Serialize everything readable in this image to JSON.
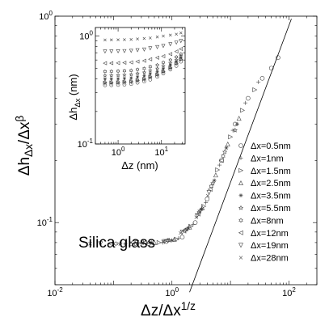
{
  "chart_data": {
    "type": "scatter",
    "xlabel": "Δz/Δx^{1/z}",
    "ylabel": "Δh_{Δx}/Δx^β",
    "xscale": "log",
    "yscale": "log",
    "xlim": [
      0.01,
      300
    ],
    "ylim": [
      0.05,
      1
    ],
    "xticks": [
      {
        "value": 0.01,
        "base": "10",
        "exp": "-2"
      },
      {
        "value": 1,
        "base": "10",
        "exp": "0"
      },
      {
        "value": 100,
        "base": "10",
        "exp": "2"
      }
    ],
    "yticks": [
      {
        "value": 0.1,
        "base": "10",
        "exp": "-1"
      },
      {
        "value": 1,
        "base": "10",
        "exp": "0"
      }
    ],
    "annotation": "Silica glass",
    "legend_position": "bottom-right",
    "series": [
      {
        "name": "Δx=0.5nm",
        "marker": "circle",
        "points": [
          [
            0.4,
            0.079
          ],
          [
            0.8,
            0.081
          ],
          [
            1.5,
            0.085
          ],
          [
            2.5,
            0.1
          ],
          [
            4,
            0.13
          ],
          [
            7,
            0.2
          ],
          [
            12,
            0.3
          ],
          [
            20,
            0.4
          ],
          [
            35,
            0.5
          ],
          [
            50,
            0.56
          ],
          [
            65,
            0.63
          ]
        ]
      },
      {
        "name": "Δx=1nm",
        "marker": "plus",
        "points": [
          [
            0.3,
            0.079
          ],
          [
            0.7,
            0.08
          ],
          [
            1.3,
            0.084
          ],
          [
            2.3,
            0.098
          ],
          [
            3.8,
            0.125
          ],
          [
            6.5,
            0.19
          ],
          [
            11,
            0.28
          ],
          [
            18,
            0.38
          ],
          [
            30,
            0.48
          ]
        ]
      },
      {
        "name": "Δx=1.5nm",
        "marker": "triangle-right",
        "points": [
          [
            0.25,
            0.079
          ],
          [
            0.6,
            0.08
          ],
          [
            1.2,
            0.083
          ],
          [
            2.1,
            0.096
          ],
          [
            3.5,
            0.12
          ],
          [
            6,
            0.18
          ],
          [
            10,
            0.26
          ],
          [
            16,
            0.35
          ],
          [
            26,
            0.44
          ]
        ]
      },
      {
        "name": "Δx=2.5nm",
        "marker": "triangle-up",
        "points": [
          [
            0.2,
            0.079
          ],
          [
            0.5,
            0.08
          ],
          [
            1.1,
            0.083
          ],
          [
            2,
            0.095
          ],
          [
            3.3,
            0.118
          ],
          [
            5.6,
            0.17
          ],
          [
            9,
            0.24
          ],
          [
            14,
            0.32
          ]
        ]
      },
      {
        "name": "Δx=3.5nm",
        "marker": "asterisk",
        "points": [
          [
            0.16,
            0.079
          ],
          [
            0.45,
            0.08
          ],
          [
            1,
            0.082
          ],
          [
            1.9,
            0.094
          ],
          [
            3.2,
            0.116
          ],
          [
            5.3,
            0.16
          ],
          [
            8.5,
            0.23
          ],
          [
            13,
            0.3
          ]
        ]
      },
      {
        "name": "Δx=5.5nm",
        "marker": "star",
        "points": [
          [
            0.13,
            0.079
          ],
          [
            0.4,
            0.08
          ],
          [
            0.9,
            0.082
          ],
          [
            1.8,
            0.093
          ],
          [
            3,
            0.114
          ],
          [
            5,
            0.155
          ],
          [
            8,
            0.22
          ],
          [
            12,
            0.28
          ]
        ]
      },
      {
        "name": "Δx=8nm",
        "marker": "hexagram",
        "points": [
          [
            0.11,
            0.079
          ],
          [
            0.35,
            0.08
          ],
          [
            0.85,
            0.082
          ],
          [
            1.7,
            0.092
          ],
          [
            2.9,
            0.112
          ],
          [
            4.7,
            0.15
          ],
          [
            7.5,
            0.21
          ]
        ]
      },
      {
        "name": "Δx=12nm",
        "marker": "triangle-left",
        "points": [
          [
            0.09,
            0.079
          ],
          [
            0.3,
            0.08
          ],
          [
            0.8,
            0.082
          ],
          [
            1.6,
            0.091
          ],
          [
            2.8,
            0.11
          ],
          [
            4.5,
            0.145
          ],
          [
            7,
            0.2
          ]
        ]
      },
      {
        "name": "Δx=19nm",
        "marker": "triangle-down",
        "points": [
          [
            0.06,
            0.079
          ],
          [
            0.25,
            0.08
          ],
          [
            0.75,
            0.081
          ],
          [
            1.5,
            0.09
          ],
          [
            2.7,
            0.108
          ],
          [
            4.3,
            0.14
          ]
        ]
      },
      {
        "name": "Δx=28nm",
        "marker": "cross",
        "points": [
          [
            0.04,
            0.079
          ],
          [
            0.2,
            0.08
          ],
          [
            0.7,
            0.081
          ],
          [
            1.4,
            0.089
          ],
          [
            2.6,
            0.106
          ],
          [
            4.1,
            0.135
          ]
        ]
      }
    ],
    "fit_line": {
      "x": [
        2,
        110
      ],
      "y": [
        0.046,
        0.97
      ]
    },
    "inset": {
      "type": "scatter",
      "xlabel": "Δz (nm)",
      "ylabel": "Δh_{Δx} (nm)",
      "xscale": "log",
      "yscale": "log",
      "xlim": [
        0.3,
        35
      ],
      "ylim": [
        0.1,
        1.2
      ],
      "xticks": [
        {
          "value": 1,
          "base": "10",
          "exp": "0"
        },
        {
          "value": 10,
          "base": "10",
          "exp": "1"
        }
      ],
      "yticks": [
        {
          "value": 0.1,
          "base": "10",
          "exp": "-1"
        },
        {
          "value": 1,
          "base": "10",
          "exp": "0"
        }
      ],
      "xsamples": [
        0.5,
        0.7,
        1,
        1.4,
        2,
        2.8,
        4,
        5.5,
        8,
        11,
        16,
        22,
        28
      ],
      "series": [
        {
          "marker": "circle",
          "y": [
            0.35,
            0.351,
            0.353,
            0.355,
            0.36,
            0.37,
            0.38,
            0.395,
            0.42,
            0.45,
            0.49,
            0.53,
            0.58
          ]
        },
        {
          "marker": "plus",
          "y": [
            0.36,
            0.361,
            0.363,
            0.366,
            0.37,
            0.38,
            0.39,
            0.41,
            0.43,
            0.46,
            0.5,
            0.55,
            0.6
          ]
        },
        {
          "marker": "triangle-right",
          "y": [
            0.37,
            0.371,
            0.373,
            0.376,
            0.38,
            0.39,
            0.4,
            0.42,
            0.44,
            0.47,
            0.51,
            0.56,
            0.61
          ]
        },
        {
          "marker": "triangle-up",
          "y": [
            0.38,
            0.381,
            0.383,
            0.386,
            0.39,
            0.4,
            0.41,
            0.43,
            0.45,
            0.48,
            0.52,
            0.57,
            0.62
          ]
        },
        {
          "marker": "asterisk",
          "y": [
            0.4,
            0.401,
            0.403,
            0.406,
            0.41,
            0.42,
            0.43,
            0.45,
            0.47,
            0.5,
            0.54,
            0.58,
            0.63
          ]
        },
        {
          "marker": "star",
          "y": [
            0.43,
            0.431,
            0.433,
            0.436,
            0.44,
            0.45,
            0.46,
            0.48,
            0.5,
            0.53,
            0.56,
            0.6,
            0.65
          ]
        },
        {
          "marker": "hexagram",
          "y": [
            0.47,
            0.471,
            0.473,
            0.476,
            0.48,
            0.49,
            0.5,
            0.52,
            0.54,
            0.57,
            0.6,
            0.64,
            0.68
          ]
        },
        {
          "marker": "triangle-left",
          "y": [
            0.56,
            0.561,
            0.563,
            0.566,
            0.57,
            0.58,
            0.59,
            0.61,
            0.63,
            0.65,
            0.68,
            0.72,
            0.76
          ]
        },
        {
          "marker": "triangle-down",
          "y": [
            0.72,
            0.721,
            0.723,
            0.726,
            0.73,
            0.74,
            0.75,
            0.77,
            0.79,
            0.81,
            0.84,
            0.87,
            0.9
          ]
        },
        {
          "marker": "cross",
          "y": [
            0.92,
            0.921,
            0.923,
            0.926,
            0.93,
            0.94,
            0.95,
            0.96,
            0.98,
            1.0,
            1.02,
            1.04,
            1.07
          ]
        }
      ]
    }
  }
}
